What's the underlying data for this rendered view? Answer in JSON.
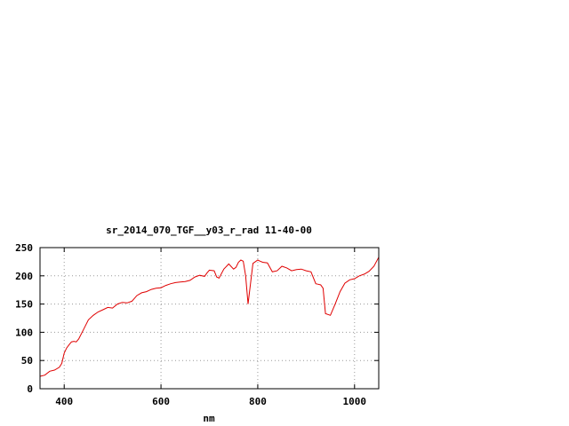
{
  "chart_data": {
    "type": "line",
    "title": "sr_2014_070_TGF__y03_r_rad 11-40-00",
    "xlabel": "nm",
    "ylabel": "",
    "xlim": [
      350,
      1050
    ],
    "ylim": [
      0,
      250
    ],
    "x_ticks": [
      400,
      600,
      800,
      1000
    ],
    "y_ticks": [
      0,
      50,
      100,
      150,
      200,
      250
    ],
    "grid": true,
    "grid_style": "dotted",
    "line_color": "#e00000",
    "series": [
      {
        "x": [
          350,
          360,
          370,
          380,
          390,
          395,
          400,
          405,
          410,
          415,
          420,
          425,
          430,
          440,
          450,
          460,
          470,
          480,
          490,
          500,
          510,
          520,
          530,
          540,
          550,
          560,
          570,
          580,
          590,
          600,
          610,
          620,
          630,
          640,
          650,
          660,
          670,
          680,
          690,
          695,
          700,
          710,
          715,
          720,
          730,
          740,
          750,
          755,
          760,
          765,
          770,
          775,
          780,
          790,
          800,
          805,
          810,
          820,
          830,
          840,
          850,
          860,
          870,
          880,
          890,
          900,
          910,
          920,
          925,
          930,
          935,
          940,
          950,
          960,
          970,
          980,
          990,
          1000,
          1010,
          1020,
          1030,
          1040,
          1050
        ],
        "y": [
          22,
          24,
          31,
          33,
          38,
          45,
          63,
          72,
          78,
          83,
          84,
          83,
          88,
          105,
          122,
          130,
          136,
          140,
          144,
          143,
          150,
          153,
          152,
          155,
          165,
          170,
          172,
          176,
          178,
          179,
          183,
          186,
          188,
          189,
          190,
          192,
          198,
          201,
          199,
          205,
          210,
          209,
          198,
          196,
          212,
          221,
          212,
          215,
          224,
          228,
          226,
          200,
          150,
          222,
          228,
          226,
          224,
          223,
          207,
          209,
          217,
          214,
          209,
          211,
          212,
          209,
          207,
          186,
          185,
          184,
          178,
          133,
          130,
          150,
          172,
          187,
          193,
          195,
          200,
          203,
          208,
          217,
          233
        ]
      }
    ]
  }
}
